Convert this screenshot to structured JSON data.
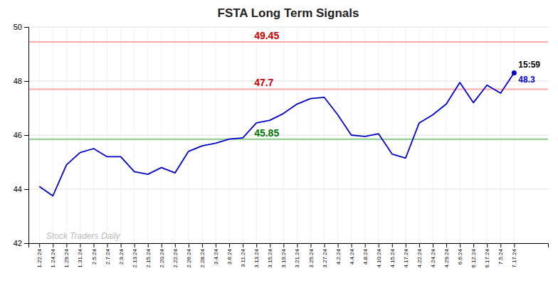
{
  "chart_data": {
    "type": "line",
    "title": "FSTA Long Term Signals",
    "categories": [
      "1.22.24",
      "1.24.24",
      "1.29.24",
      "1.31.24",
      "2.5.24",
      "2.7.24",
      "2.9.24",
      "2.13.24",
      "2.15.24",
      "2.20.24",
      "2.22.24",
      "2.26.24",
      "2.28.24",
      "3.4.24",
      "3.6.24",
      "3.11.24",
      "3.13.24",
      "3.15.24",
      "3.19.24",
      "3.21.24",
      "3.25.24",
      "3.27.24",
      "4.2.24",
      "4.4.24",
      "4.8.24",
      "4.10.24",
      "4.15.24",
      "4.17.24",
      "4.22.24",
      "4.24.24",
      "4.29.24",
      "6.6.24",
      "6.12.24",
      "6.17.24",
      "7.5.24",
      "7.17.24"
    ],
    "values": [
      44.1,
      43.75,
      44.9,
      45.35,
      45.5,
      45.2,
      45.2,
      44.65,
      44.55,
      44.8,
      44.6,
      45.4,
      45.6,
      45.7,
      45.85,
      45.9,
      46.45,
      46.55,
      46.8,
      47.15,
      47.35,
      47.4,
      46.75,
      46.0,
      45.95,
      46.05,
      45.3,
      45.15,
      46.45,
      46.75,
      47.15,
      47.95,
      47.2,
      47.85,
      47.55,
      48.3
    ],
    "value_labels": [
      null,
      null,
      null,
      null,
      null,
      null,
      null,
      null,
      null,
      null,
      null,
      null,
      null,
      null,
      null,
      null,
      null,
      null,
      null,
      null,
      null,
      null,
      null,
      null,
      null,
      null,
      null,
      null,
      null,
      null,
      null,
      null,
      null,
      null,
      null,
      "48.3"
    ],
    "color": "#0000cc",
    "reference_lines": [
      {
        "value": 49.45,
        "color": "#ffaaaa",
        "label": "49.45",
        "label_color": "#cc0000"
      },
      {
        "value": 47.7,
        "color": "#ffaaaa",
        "label": "47.7",
        "label_color": "#cc0000"
      },
      {
        "value": 45.85,
        "color": "#88cc88",
        "label": "45.85",
        "label_color": "#007700"
      }
    ],
    "annotations": [
      {
        "text": "15:59",
        "color": "#000000"
      },
      {
        "text": "Stock Traders Daily",
        "color": "#bbbbbb"
      }
    ],
    "ylim": [
      42,
      50
    ],
    "yticks": [
      42,
      44,
      46,
      48,
      50
    ],
    "grid": true
  }
}
